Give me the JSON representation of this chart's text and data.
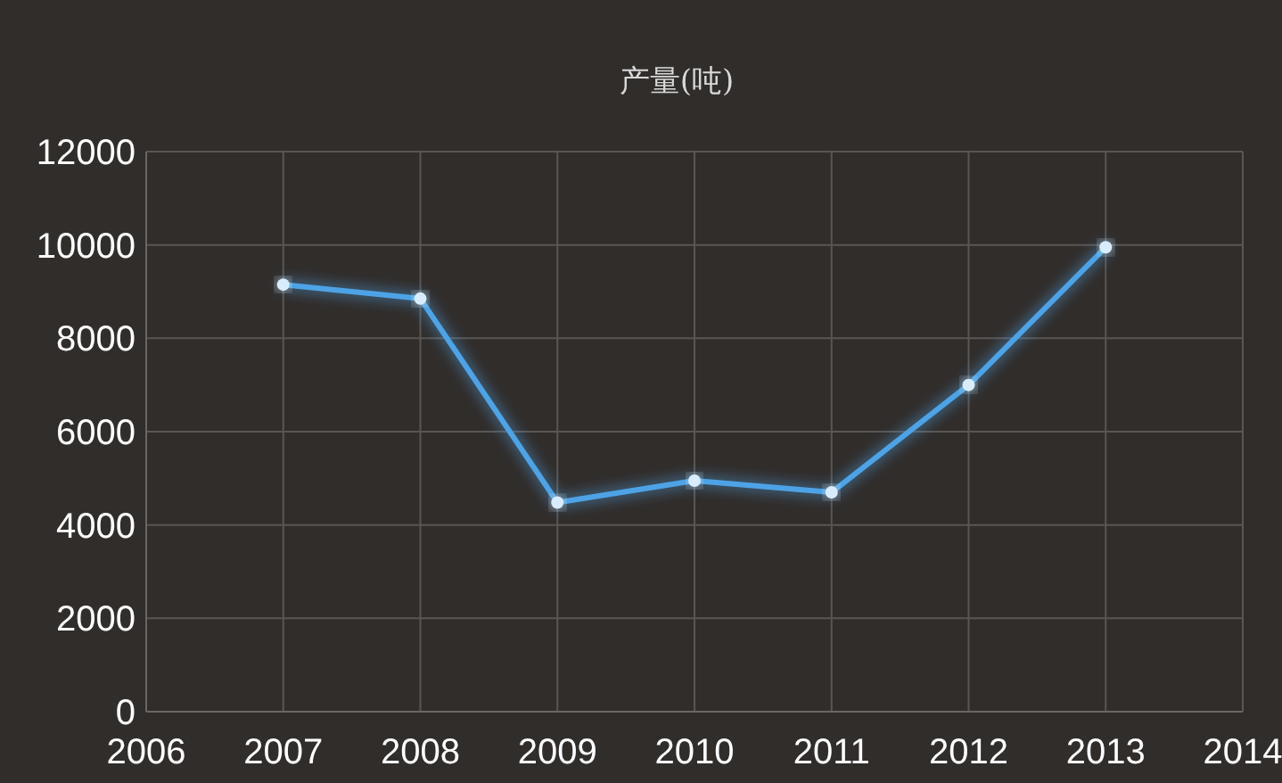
{
  "chart_data": {
    "type": "line",
    "title": "产量(吨)",
    "x": [
      2007,
      2008,
      2009,
      2010,
      2011,
      2012,
      2013
    ],
    "series": [
      {
        "color": "#4ea3e6",
        "values": [
          9150,
          8850,
          4480,
          4950,
          4700,
          7000,
          9950
        ]
      }
    ],
    "xlim": [
      2006,
      2014
    ],
    "xticks": [
      2006,
      2007,
      2008,
      2009,
      2010,
      2011,
      2012,
      2013,
      2014
    ],
    "ylim": [
      0,
      12000
    ],
    "yticks": [
      0,
      2000,
      4000,
      6000,
      8000,
      10000,
      12000
    ],
    "grid": true,
    "marker": "circle",
    "line_style": "solid"
  }
}
